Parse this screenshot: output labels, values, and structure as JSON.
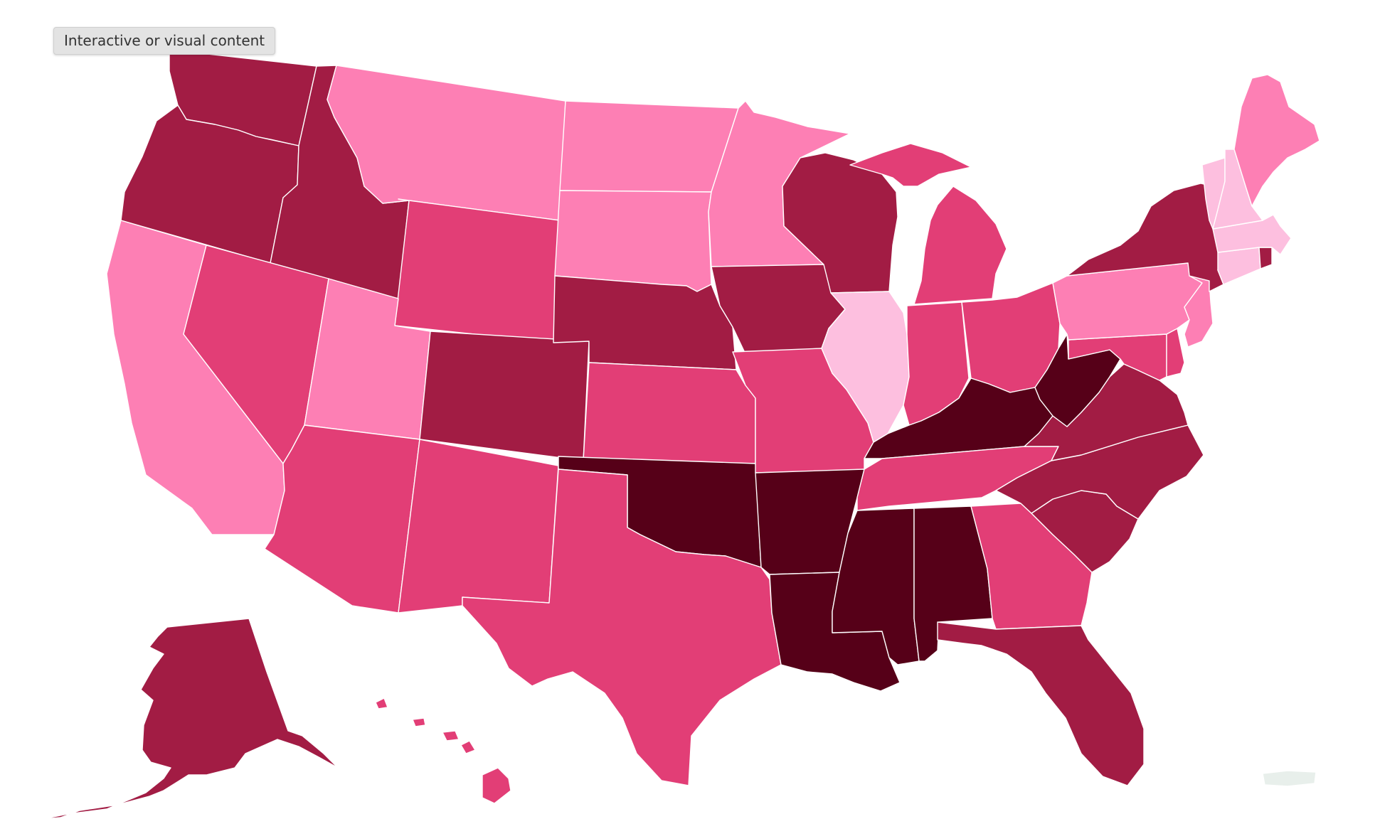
{
  "badge": {
    "label": "Interactive or visual content"
  },
  "map": {
    "palette": {
      "level1": "#fdbfdf",
      "level2": "#fd7fb4",
      "level3": "#e23e76",
      "level4": "#a21c44",
      "level5": "#560018",
      "no_data": "#e8efeb"
    },
    "states": [
      {
        "code": "WA",
        "level": 4
      },
      {
        "code": "OR",
        "level": 4
      },
      {
        "code": "CA",
        "level": 2
      },
      {
        "code": "ID",
        "level": 4
      },
      {
        "code": "NV",
        "level": 3
      },
      {
        "code": "MT",
        "level": 2
      },
      {
        "code": "WY",
        "level": 3
      },
      {
        "code": "UT",
        "level": 2
      },
      {
        "code": "AZ",
        "level": 3
      },
      {
        "code": "CO",
        "level": 4
      },
      {
        "code": "NM",
        "level": 3
      },
      {
        "code": "ND",
        "level": 2
      },
      {
        "code": "SD",
        "level": 2
      },
      {
        "code": "NE",
        "level": 4
      },
      {
        "code": "KS",
        "level": 3
      },
      {
        "code": "OK",
        "level": 5
      },
      {
        "code": "TX",
        "level": 3
      },
      {
        "code": "MN",
        "level": 2
      },
      {
        "code": "IA",
        "level": 4
      },
      {
        "code": "MO",
        "level": 3
      },
      {
        "code": "AR",
        "level": 5
      },
      {
        "code": "LA",
        "level": 5
      },
      {
        "code": "WI",
        "level": 4
      },
      {
        "code": "IL",
        "level": 1
      },
      {
        "code": "MI",
        "level": 3
      },
      {
        "code": "IN",
        "level": 3
      },
      {
        "code": "OH",
        "level": 3
      },
      {
        "code": "KY",
        "level": 5
      },
      {
        "code": "TN",
        "level": 3
      },
      {
        "code": "MS",
        "level": 5
      },
      {
        "code": "AL",
        "level": 5
      },
      {
        "code": "GA",
        "level": 3
      },
      {
        "code": "FL",
        "level": 4
      },
      {
        "code": "SC",
        "level": 4
      },
      {
        "code": "NC",
        "level": 4
      },
      {
        "code": "VA",
        "level": 4
      },
      {
        "code": "WV",
        "level": 5
      },
      {
        "code": "MD",
        "level": 3
      },
      {
        "code": "DE",
        "level": 3
      },
      {
        "code": "PA",
        "level": 2
      },
      {
        "code": "NJ",
        "level": 2
      },
      {
        "code": "NY",
        "level": 4
      },
      {
        "code": "CT",
        "level": 1
      },
      {
        "code": "RI",
        "level": 4
      },
      {
        "code": "MA",
        "level": 1
      },
      {
        "code": "VT",
        "level": 1
      },
      {
        "code": "NH",
        "level": 1
      },
      {
        "code": "ME",
        "level": 2
      },
      {
        "code": "AK",
        "level": 4
      },
      {
        "code": "HI",
        "level": 3
      },
      {
        "code": "PR",
        "level": 0
      }
    ]
  }
}
